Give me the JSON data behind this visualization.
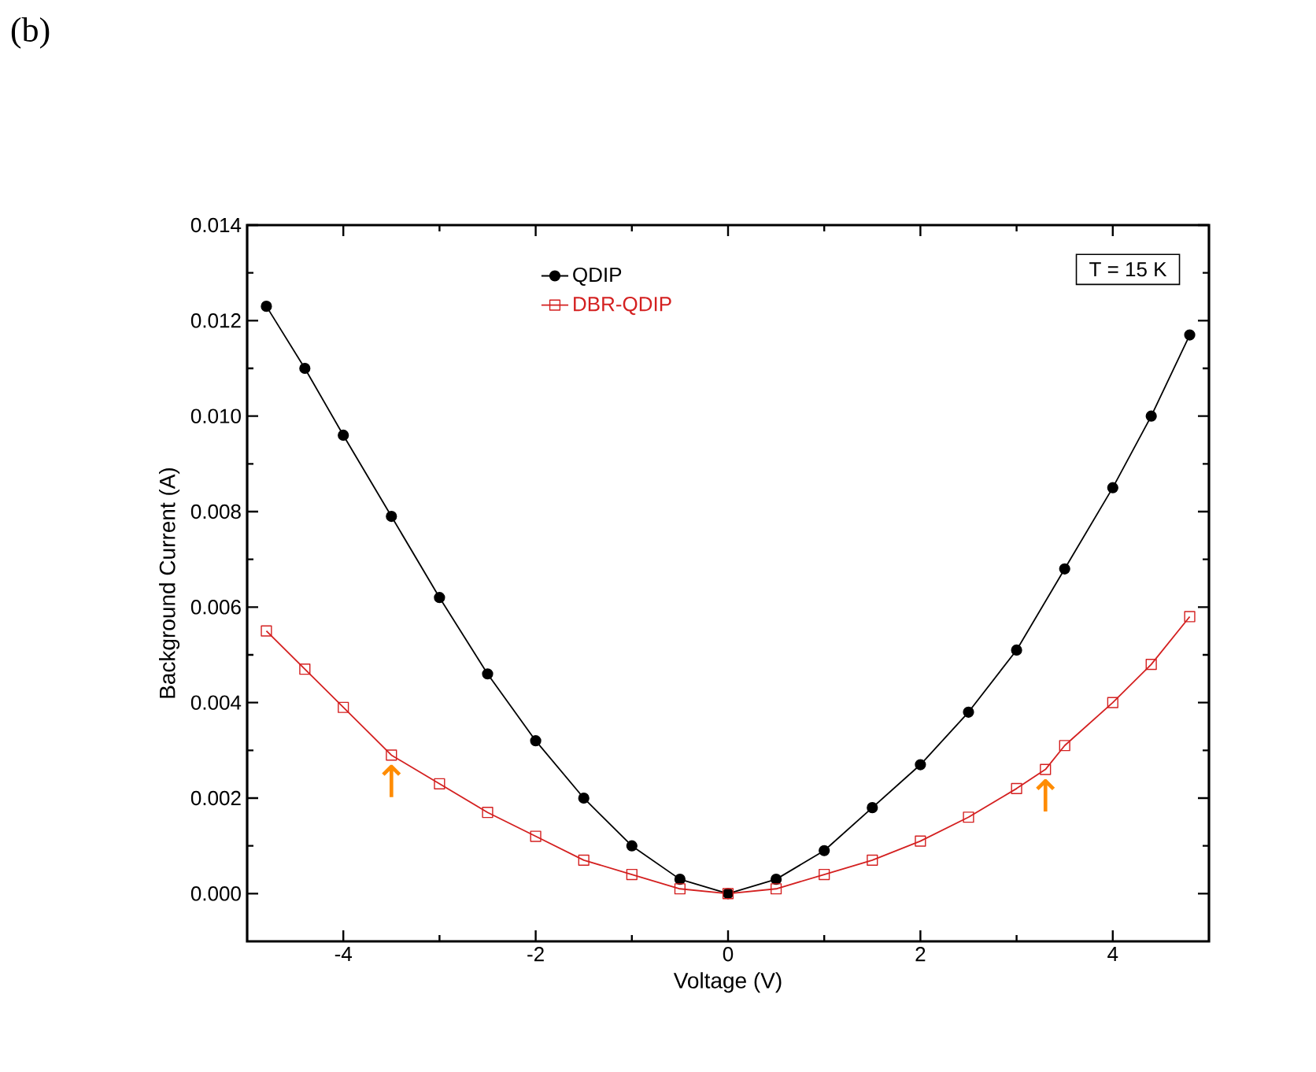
{
  "chart_data": {
    "type": "line",
    "xlabel": "Voltage (V)",
    "ylabel": "Background Current (A)",
    "xlim": [
      -5,
      5
    ],
    "ylim": [
      -0.001,
      0.014
    ],
    "xticks": [
      -4,
      -2,
      0,
      2,
      4
    ],
    "yticks": [
      {
        "value": 0,
        "label": "0.000"
      },
      {
        "value": 0.002,
        "label": "0.002"
      },
      {
        "value": 0.004,
        "label": "0.004"
      },
      {
        "value": 0.006,
        "label": "0.006"
      },
      {
        "value": 0.008,
        "label": "0.008"
      },
      {
        "value": 0.01,
        "label": "0.010"
      },
      {
        "value": 0.012,
        "label": "0.012"
      },
      {
        "value": 0.014,
        "label": "0.014"
      }
    ],
    "legend": "top",
    "grid": false,
    "series": [
      {
        "name": "QDIP",
        "color": "#000000",
        "marker": "circle",
        "x": [
          -4.8,
          -4.4,
          -4.0,
          -3.5,
          -3.0,
          -2.5,
          -2.0,
          -1.5,
          -1.0,
          -0.5,
          0,
          0.5,
          1.0,
          1.5,
          2.0,
          2.5,
          3.0,
          3.5,
          4.0,
          4.4,
          4.8
        ],
        "values": [
          0.0123,
          0.011,
          0.0096,
          0.0079,
          0.0062,
          0.0046,
          0.0032,
          0.002,
          0.001,
          0.0003,
          0,
          0.0003,
          0.0009,
          0.0018,
          0.0027,
          0.0038,
          0.0051,
          0.0068,
          0.0085,
          0.01,
          0.0117
        ]
      },
      {
        "name": "DBR-QDIP",
        "color": "#d42020",
        "marker": "square",
        "x": [
          -4.8,
          -4.4,
          -4.0,
          -3.5,
          -3.0,
          -2.5,
          -2.0,
          -1.5,
          -1.0,
          -0.5,
          0,
          0.5,
          1.0,
          1.5,
          2.0,
          2.5,
          3.0,
          3.3,
          3.5,
          4.0,
          4.4,
          4.8
        ],
        "values": [
          0.0055,
          0.0047,
          0.0039,
          0.0029,
          0.0023,
          0.0017,
          0.0012,
          0.0007,
          0.0004,
          0.0001,
          0,
          0.0001,
          0.0004,
          0.0007,
          0.0011,
          0.0016,
          0.0022,
          0.0026,
          0.0031,
          0.004,
          0.0048,
          0.0058
        ]
      }
    ],
    "annotations": [
      "T = 15 K",
      "(b)",
      {
        "text": "↑",
        "x": -3.5,
        "y": 0.0029
      },
      {
        "text": "↑",
        "x": 3.3,
        "y": 0.0026
      }
    ]
  }
}
